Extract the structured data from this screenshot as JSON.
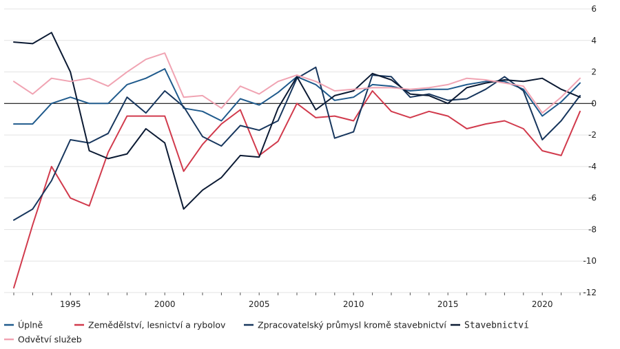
{
  "chart_data": {
    "type": "line",
    "title": "",
    "xlabel": "",
    "ylabel": "",
    "x": [
      1992,
      1993,
      1994,
      1995,
      1996,
      1997,
      1998,
      1999,
      2000,
      2001,
      2002,
      2003,
      2004,
      2005,
      2006,
      2007,
      2008,
      2009,
      2010,
      2011,
      2012,
      2013,
      2014,
      2015,
      2016,
      2017,
      2018,
      2019,
      2020,
      2021,
      2022
    ],
    "xticks": [
      "1995",
      "2000",
      "2005",
      "2010",
      "2015",
      "2020"
    ],
    "xtick_values": [
      1995,
      2000,
      2005,
      2010,
      2015,
      2020
    ],
    "ylim": [
      -12,
      6
    ],
    "yticks": [
      "6",
      "4",
      "2",
      "0",
      "-2",
      "-4",
      "-6",
      "-8",
      "-10",
      "-12"
    ],
    "ytick_values": [
      6,
      4,
      2,
      0,
      -2,
      -4,
      -6,
      -8,
      -10,
      -12
    ],
    "grid": true,
    "legend_position": "bottom",
    "series": [
      {
        "name": "Úplně",
        "color": "#1f5a8c",
        "values": [
          -1.3,
          -1.3,
          0.0,
          0.4,
          0.0,
          0.0,
          1.2,
          1.6,
          2.2,
          -0.3,
          -0.5,
          -1.1,
          0.3,
          -0.1,
          0.7,
          1.7,
          1.2,
          0.2,
          0.4,
          1.2,
          1.1,
          0.8,
          0.9,
          0.9,
          1.2,
          1.4,
          1.4,
          0.9,
          -0.8,
          0.1,
          1.3
        ]
      },
      {
        "name": "Zemědělství, lesnictví a rybolov",
        "color": "#d13a4c",
        "values": [
          -11.7,
          -7.7,
          -4.0,
          -6.0,
          -6.5,
          -3.1,
          -0.8,
          -0.8,
          -0.8,
          -4.3,
          -2.6,
          -1.3,
          -0.4,
          -3.3,
          -2.4,
          0.0,
          -0.9,
          -0.8,
          -1.1,
          0.8,
          -0.5,
          -0.9,
          -0.5,
          -0.8,
          -1.6,
          -1.3,
          -1.1,
          -1.6,
          -3.0,
          -3.3,
          -0.5
        ]
      },
      {
        "name": "Zpracovatelský průmysl kromě stavebnictví",
        "color": "#17365d",
        "values": [
          -7.4,
          -6.7,
          -4.9,
          -2.3,
          -2.5,
          -1.9,
          0.4,
          -0.6,
          0.8,
          -0.2,
          -2.1,
          -2.7,
          -1.4,
          -1.7,
          -1.1,
          1.6,
          2.3,
          -2.2,
          -1.8,
          1.8,
          1.7,
          0.4,
          0.6,
          0.2,
          0.3,
          0.9,
          1.7,
          0.8,
          -2.3,
          -1.1,
          0.5
        ]
      },
      {
        "name": "Stavebnictví",
        "color": "#0b1a33",
        "values": [
          3.9,
          3.8,
          4.5,
          2.0,
          -3.0,
          -3.5,
          -3.2,
          -1.6,
          -2.5,
          -6.7,
          -5.5,
          -4.7,
          -3.3,
          -3.4,
          -0.3,
          1.7,
          -0.4,
          0.5,
          0.8,
          1.9,
          1.5,
          0.6,
          0.5,
          0.0,
          1.0,
          1.3,
          1.5,
          1.4,
          1.6,
          0.9,
          0.4
        ]
      },
      {
        "name": "Odvětví služeb",
        "color": "#f0a3b2",
        "values": [
          1.4,
          0.6,
          1.6,
          1.4,
          1.6,
          1.1,
          2.0,
          2.8,
          3.2,
          0.4,
          0.5,
          -0.3,
          1.1,
          0.6,
          1.4,
          1.8,
          1.4,
          0.8,
          0.9,
          1.0,
          1.0,
          0.9,
          1.0,
          1.2,
          1.6,
          1.5,
          1.3,
          1.1,
          -0.6,
          0.4,
          1.6
        ]
      }
    ]
  }
}
